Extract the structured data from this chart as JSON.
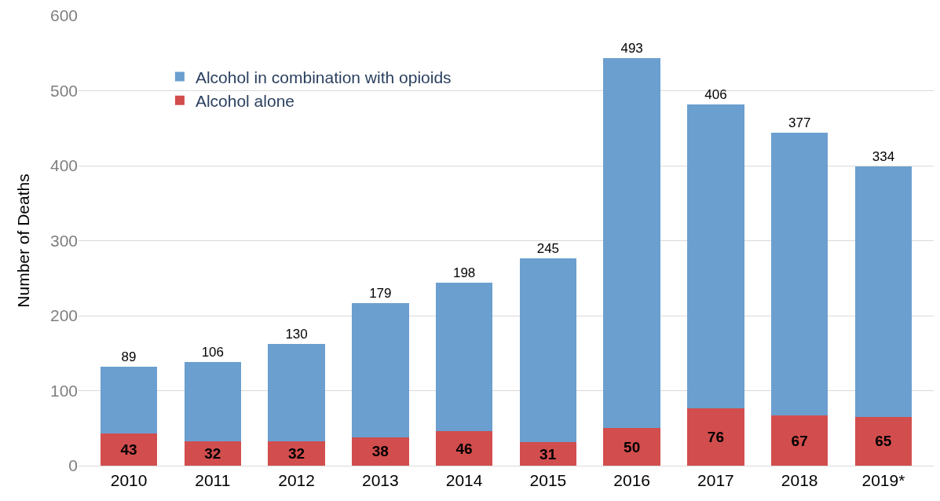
{
  "chart_data": {
    "type": "bar",
    "stacked": true,
    "ylabel": "Number of Deaths",
    "categories": [
      "2010",
      "2011",
      "2012",
      "2013",
      "2014",
      "2015",
      "2016",
      "2017",
      "2018",
      "2019*"
    ],
    "series": [
      {
        "name": "Alcohol alone",
        "color": "#d24d4d",
        "values": [
          43,
          32,
          32,
          38,
          46,
          31,
          50,
          76,
          67,
          65
        ]
      },
      {
        "name": "Alcohol in combination with opioids",
        "color": "#6b9fcf",
        "values": [
          89,
          106,
          130,
          179,
          198,
          245,
          493,
          406,
          377,
          334
        ]
      }
    ],
    "ylim": [
      0,
      600
    ],
    "yticks": [
      0,
      100,
      200,
      300,
      400,
      500,
      600
    ],
    "grid": "y",
    "legend": "top left",
    "data_labels": true
  }
}
